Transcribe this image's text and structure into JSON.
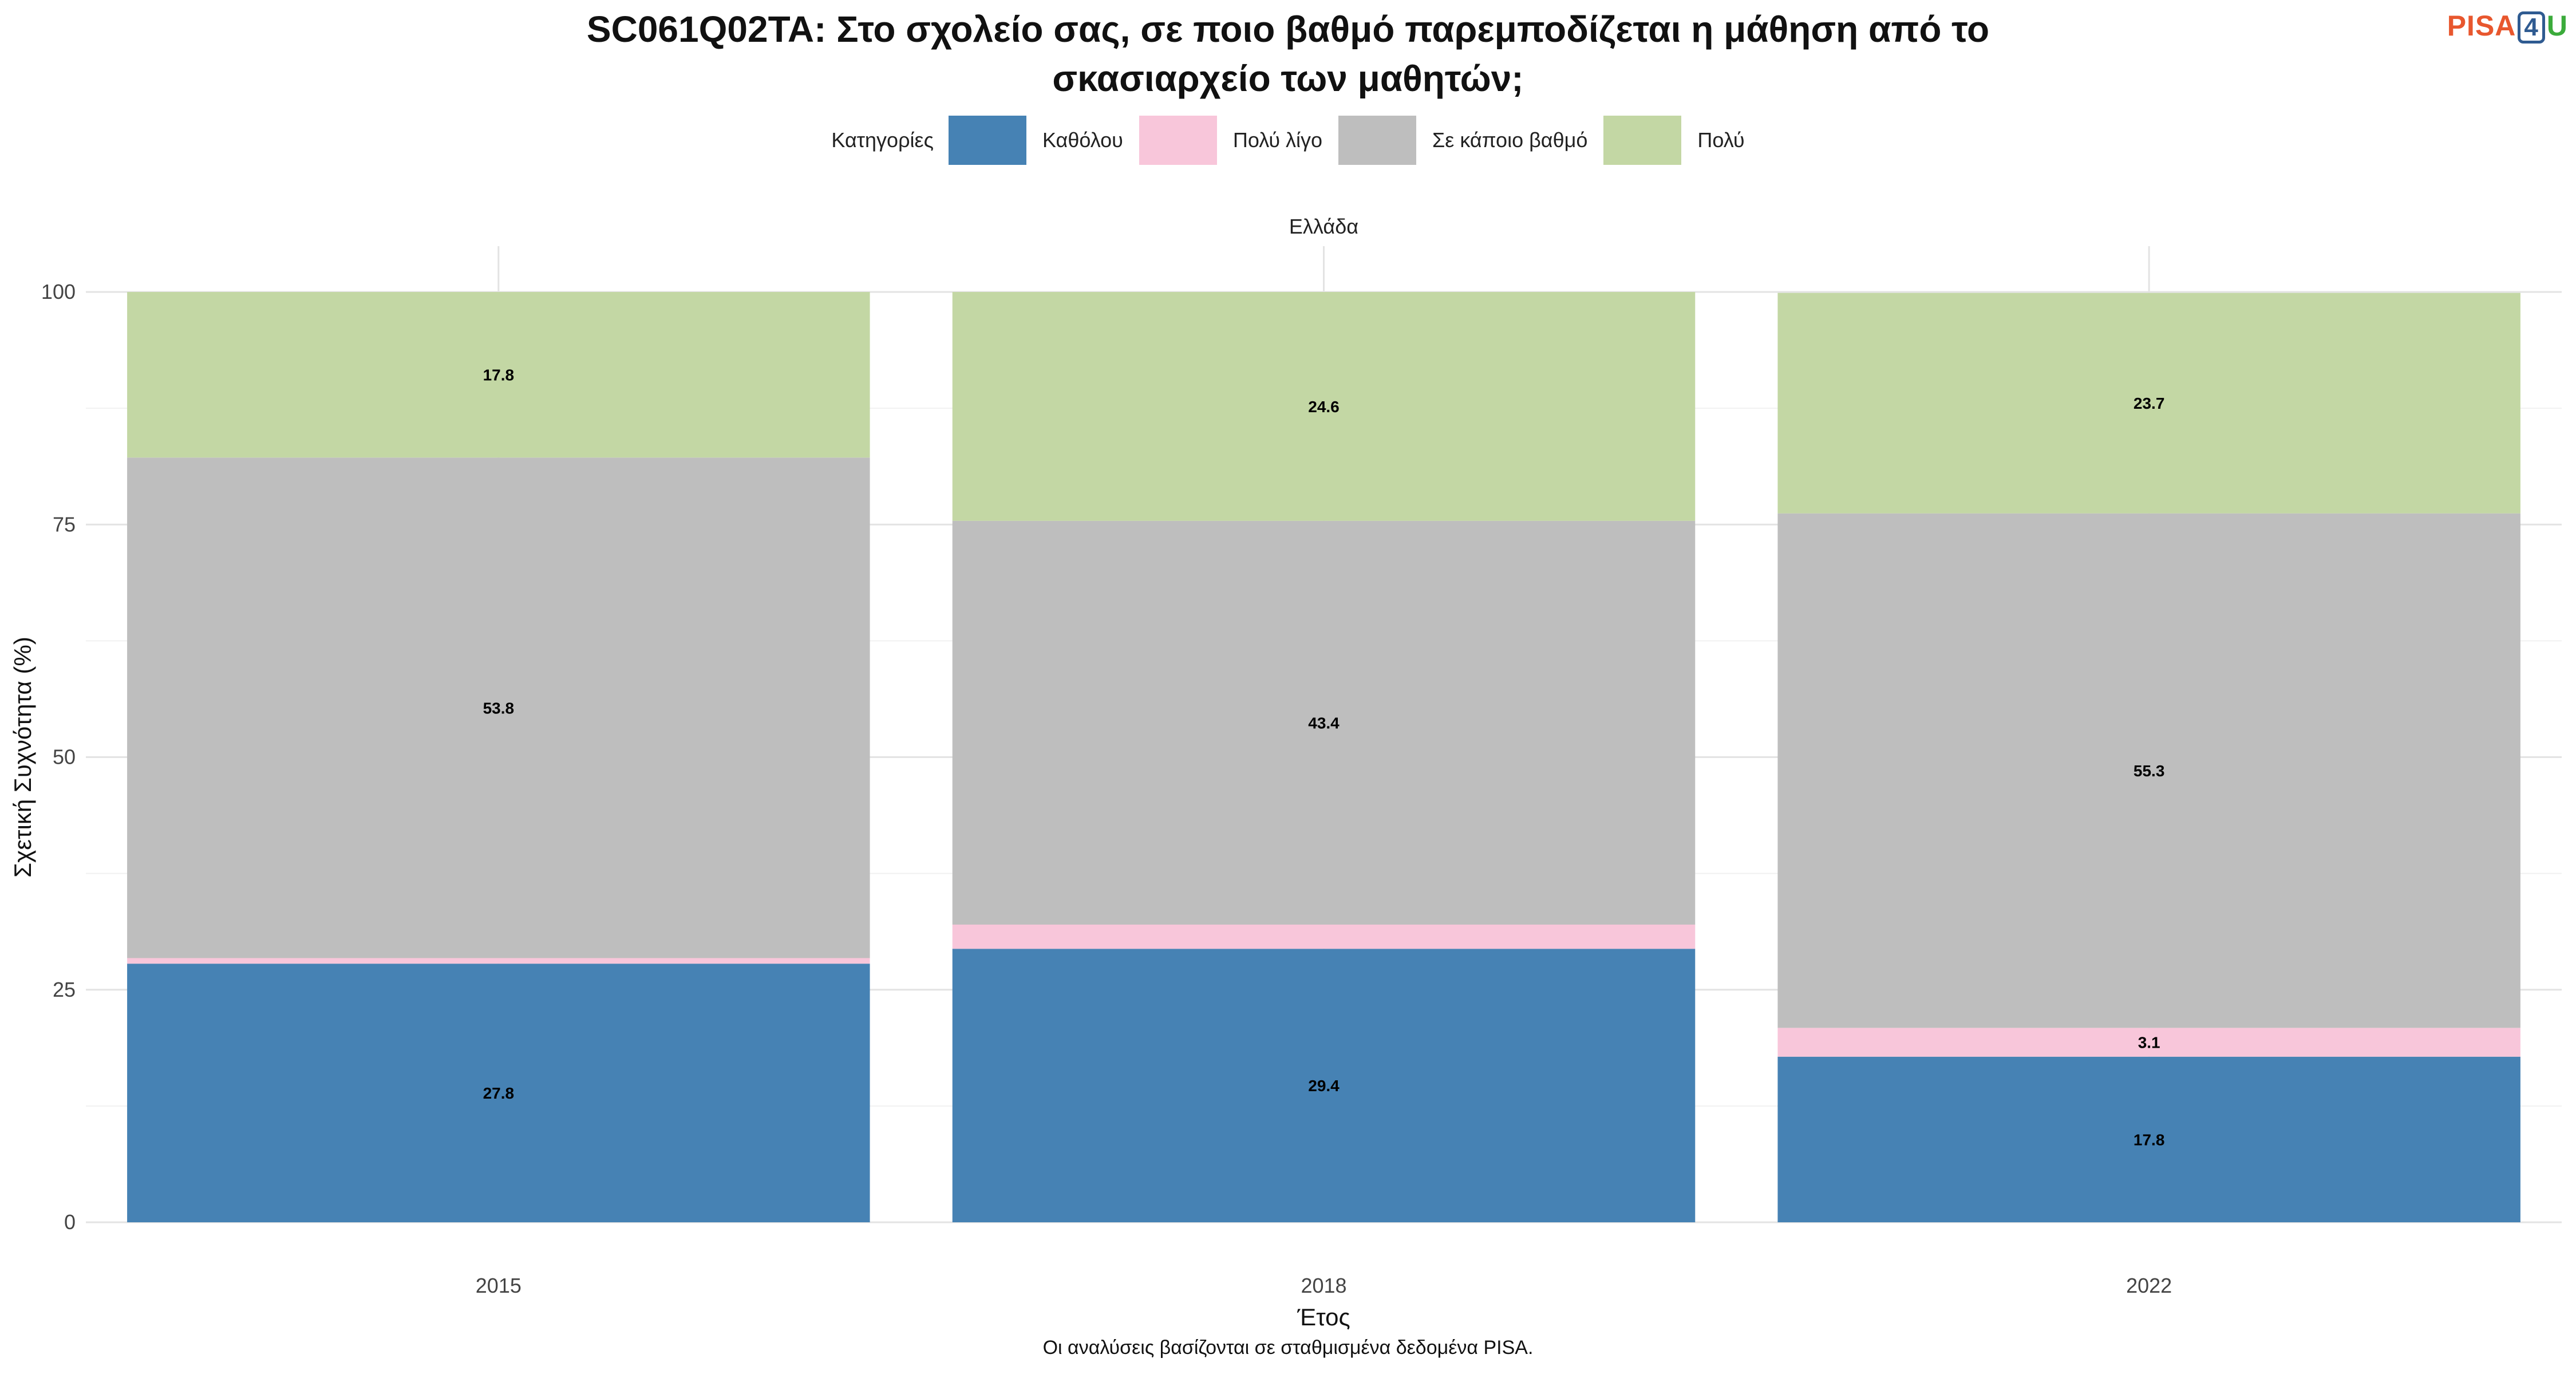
{
  "title_line1": "SC061Q02TA: Στο σχολείο σας, σε ποιο βαθμό παρεμποδίζεται η μάθηση από το",
  "title_line2": "σκασιαρχείο των μαθητών;",
  "logo": {
    "part1": "PISA",
    "part2": "4",
    "part3": "U"
  },
  "legend": {
    "title": "Κατηγορίες",
    "items": [
      {
        "label": "Καθόλου",
        "color": "#4682B4"
      },
      {
        "label": "Πολύ λίγο",
        "color": "#F8C6DA"
      },
      {
        "label": "Σε κάποιο βαθμό",
        "color": "#BEBEBE"
      },
      {
        "label": "Πολύ",
        "color": "#C3D7A4"
      }
    ]
  },
  "caption": "Οι αναλύσεις βασίζονται σε σταθμισμένα δεδομένα PISA.",
  "chart_data": {
    "type": "bar",
    "stacked": true,
    "facet_label": "Ελλάδα",
    "categories": [
      "2015",
      "2018",
      "2022"
    ],
    "series": [
      {
        "name": "Καθόλου",
        "color": "#4682B4",
        "values": [
          27.8,
          29.4,
          17.8
        ],
        "labels": [
          "27.8",
          "29.4",
          "17.8"
        ]
      },
      {
        "name": "Πολύ λίγο",
        "color": "#F8C6DA",
        "values": [
          0.6,
          2.6,
          3.1
        ],
        "labels": [
          "",
          "",
          "3.1"
        ]
      },
      {
        "name": "Σε κάποιο βαθμό",
        "color": "#BEBEBE",
        "values": [
          53.8,
          43.4,
          55.3
        ],
        "labels": [
          "53.8",
          "43.4",
          "55.3"
        ]
      },
      {
        "name": "Πολύ",
        "color": "#C3D7A4",
        "values": [
          17.8,
          24.6,
          23.7
        ],
        "labels": [
          "17.8",
          "24.6",
          "23.7"
        ]
      }
    ],
    "xlabel": "Έτος",
    "ylabel": "Σχετική Συχνότητα (%)",
    "ylim": [
      0,
      100
    ],
    "yticks": [
      0,
      25,
      50,
      75,
      100
    ],
    "grid": true,
    "legend_position": "top"
  }
}
